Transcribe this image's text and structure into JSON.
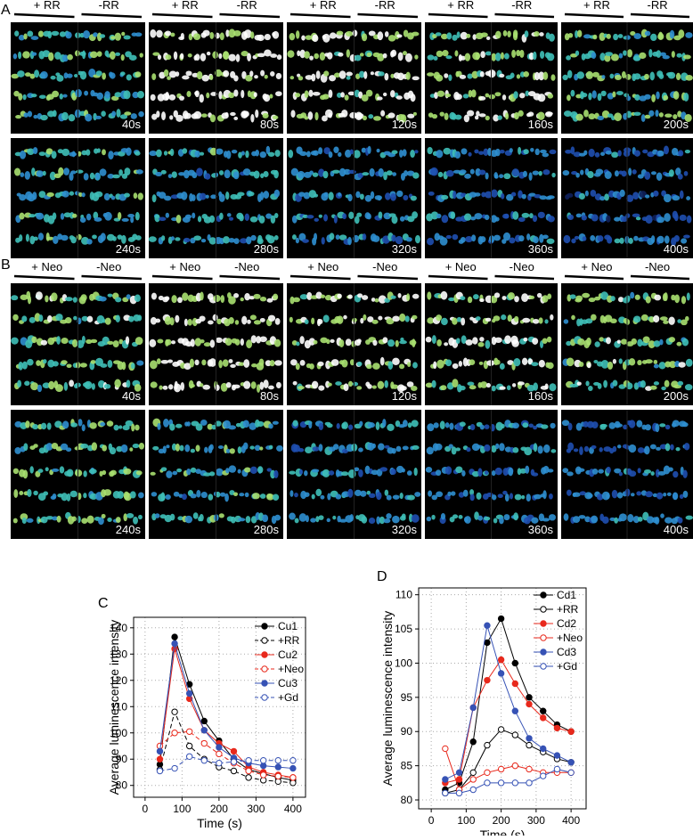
{
  "figure": {
    "A": {
      "label": "A",
      "headers": [
        "+ RR",
        "-RR",
        "+ RR",
        "-RR",
        "+ RR",
        "-RR",
        "+ RR",
        "-RR",
        "+ RR",
        "-RR"
      ],
      "times": [
        "40s",
        "80s",
        "120s",
        "160s",
        "200s",
        "240s",
        "280s",
        "320s",
        "360s",
        "400s"
      ]
    },
    "B": {
      "label": "B",
      "headers": [
        "+ Neo",
        "-Neo",
        "+ Neo",
        "-Neo",
        "+ Neo",
        "-Neo",
        "+ Neo",
        "-Neo",
        "+ Neo",
        "-Neo"
      ],
      "times": [
        "40s",
        "80s",
        "120s",
        "160s",
        "200s",
        "240s",
        "280s",
        "320s",
        "360s",
        "400s"
      ]
    }
  },
  "chart_data": [
    {
      "type": "line",
      "panel_label": "C",
      "x_label": "Time (s)",
      "y_label": "Average luminescence intensity",
      "x": [
        40,
        80,
        120,
        160,
        200,
        240,
        280,
        320,
        360,
        400
      ],
      "xlim": [
        -31,
        434
      ],
      "ylim": [
        75.5,
        144
      ],
      "xticks": [
        0,
        100,
        200,
        300,
        400
      ],
      "yticks": [
        80,
        90,
        100,
        110,
        120,
        130,
        140
      ],
      "grid": true,
      "legend": "upper right",
      "series": [
        {
          "name": "Cu1",
          "color": "#000000",
          "marker": "filled",
          "dashed": false,
          "values": [
            88,
            136.5,
            118.5,
            104.5,
            97,
            90,
            86,
            84.5,
            83,
            82
          ]
        },
        {
          "name": "+RR",
          "color": "#000000",
          "marker": "open",
          "dashed": true,
          "values": [
            86,
            108,
            95,
            90,
            87,
            85.5,
            83,
            82,
            81.5,
            81
          ]
        },
        {
          "name": "Cu2",
          "color": "#e8291c",
          "marker": "filled",
          "dashed": false,
          "values": [
            90,
            132,
            113,
            101,
            96,
            93,
            87,
            85,
            84,
            83
          ]
        },
        {
          "name": "+Neo",
          "color": "#e8291c",
          "marker": "open",
          "dashed": true,
          "values": [
            95,
            100,
            100.5,
            96,
            92,
            88.5,
            85.5,
            84,
            83.5,
            83
          ]
        },
        {
          "name": "Cu3",
          "color": "#3652b5",
          "marker": "filled",
          "dashed": false,
          "values": [
            93,
            134,
            115,
            101,
            94.5,
            90.5,
            88.5,
            87.5,
            87,
            86.5
          ]
        },
        {
          "name": "+Gd",
          "color": "#3652b5",
          "marker": "open",
          "dashed": true,
          "values": [
            85.5,
            86.5,
            91,
            89.5,
            88.5,
            89,
            89.5,
            89.5,
            89.5,
            89.5
          ]
        }
      ]
    },
    {
      "type": "line",
      "panel_label": "D",
      "x_label": "Time (s)",
      "y_label": "Average luminescence intensity",
      "x": [
        40,
        80,
        120,
        160,
        200,
        240,
        280,
        320,
        360,
        400
      ],
      "xlim": [
        -36,
        443
      ],
      "ylim": [
        78.7,
        111
      ],
      "xticks": [
        0,
        100,
        200,
        300,
        400
      ],
      "yticks": [
        80,
        85,
        90,
        95,
        100,
        105,
        110
      ],
      "grid": true,
      "legend": "upper right",
      "series": [
        {
          "name": "Cd1",
          "color": "#000000",
          "marker": "filled",
          "dashed": false,
          "values": [
            81.5,
            82.5,
            88.5,
            103,
            106.5,
            100,
            95,
            93,
            91,
            90
          ]
        },
        {
          "name": "+RR",
          "color": "#000000",
          "marker": "open",
          "dashed": false,
          "values": [
            81,
            81.5,
            84,
            88,
            90.3,
            89.5,
            88,
            87,
            86,
            85.5
          ]
        },
        {
          "name": "Cd2",
          "color": "#e8291c",
          "marker": "filled",
          "dashed": false,
          "values": [
            82.5,
            83,
            93.5,
            97.5,
            100.5,
            97,
            94,
            92,
            90.5,
            90
          ]
        },
        {
          "name": "+Neo",
          "color": "#e8291c",
          "marker": "open",
          "dashed": false,
          "values": [
            87.5,
            81.5,
            83,
            84,
            84.5,
            85,
            84.5,
            84,
            84,
            84
          ]
        },
        {
          "name": "Cd3",
          "color": "#3652b5",
          "marker": "filled",
          "dashed": false,
          "values": [
            83,
            84,
            93.5,
            105.5,
            98.5,
            93,
            89,
            87.5,
            86.5,
            85.5
          ]
        },
        {
          "name": "+Gd",
          "color": "#3652b5",
          "marker": "open",
          "dashed": false,
          "values": [
            81,
            81,
            81.5,
            82.5,
            82.5,
            82.5,
            82.5,
            83.5,
            84.5,
            84
          ]
        }
      ]
    }
  ]
}
